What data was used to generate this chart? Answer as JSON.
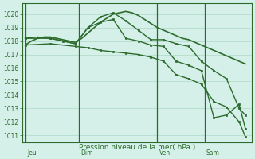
{
  "background_color": "#d4f0e8",
  "grid_color": "#b0d8c8",
  "line_color": "#2d6b2d",
  "xlabel_text": "Pression niveau de la mer( hPa )",
  "ylim": [
    1010.5,
    1020.8
  ],
  "yticks": [
    1011,
    1012,
    1013,
    1014,
    1015,
    1016,
    1017,
    1018,
    1019,
    1020
  ],
  "day_labels": [
    "Jeu",
    "Dim",
    "Ven",
    "Sam"
  ],
  "lines": [
    {
      "x": [
        0,
        1,
        2,
        3,
        4,
        5,
        6,
        7,
        8,
        9,
        10,
        11,
        12,
        13,
        14,
        15,
        16,
        17,
        18,
        19,
        20,
        21,
        22,
        23,
        24,
        25,
        26,
        27,
        28,
        29,
        30,
        31,
        32,
        33,
        34,
        35
      ],
      "y": [
        1017.7,
        1018.0,
        1018.2,
        1018.3,
        1018.3,
        1018.2,
        1018.1,
        1018.0,
        1017.9,
        1018.2,
        1018.6,
        1019.0,
        1019.4,
        1019.7,
        1020.0,
        1020.1,
        1020.2,
        1020.1,
        1019.9,
        1019.6,
        1019.3,
        1019.0,
        1018.8,
        1018.6,
        1018.4,
        1018.2,
        1018.1,
        1017.9,
        1017.7,
        1017.5,
        1017.3,
        1017.1,
        1016.9,
        1016.7,
        1016.5,
        1016.3
      ],
      "markers": false,
      "lw": 1.2
    },
    {
      "x": [
        0,
        2,
        4,
        6,
        8,
        10,
        12,
        14,
        16,
        18,
        20,
        22,
        24,
        26,
        28,
        30,
        32,
        34,
        35
      ],
      "y": [
        1018.2,
        1018.3,
        1018.2,
        1018.0,
        1017.8,
        1019.0,
        1019.8,
        1020.1,
        1019.5,
        1018.8,
        1018.1,
        1018.1,
        1017.8,
        1017.6,
        1016.5,
        1015.8,
        1015.2,
        1013.0,
        1012.5
      ],
      "markers": true,
      "lw": 1.0
    },
    {
      "x": [
        0,
        4,
        8,
        10,
        12,
        14,
        16,
        18,
        20,
        22,
        24,
        26,
        28,
        30,
        32,
        34,
        35
      ],
      "y": [
        1018.2,
        1018.2,
        1017.8,
        1019.0,
        1019.4,
        1019.6,
        1018.2,
        1018.0,
        1017.7,
        1017.6,
        1016.5,
        1016.2,
        1015.8,
        1012.3,
        1012.5,
        1013.3,
        1011.5
      ],
      "markers": true,
      "lw": 1.0
    },
    {
      "x": [
        0,
        4,
        8,
        10,
        12,
        14,
        16,
        18,
        20,
        22,
        24,
        26,
        28,
        30,
        32,
        34,
        35
      ],
      "y": [
        1017.7,
        1017.8,
        1017.6,
        1017.5,
        1017.3,
        1017.2,
        1017.1,
        1017.0,
        1016.8,
        1016.5,
        1015.5,
        1015.2,
        1014.8,
        1013.5,
        1013.1,
        1012.0,
        1010.9
      ],
      "markers": true,
      "lw": 1.0
    }
  ],
  "xtick_minor_count": 36,
  "xlim": [
    -0.5,
    36
  ],
  "figsize": [
    3.2,
    2.0
  ],
  "dpi": 100
}
